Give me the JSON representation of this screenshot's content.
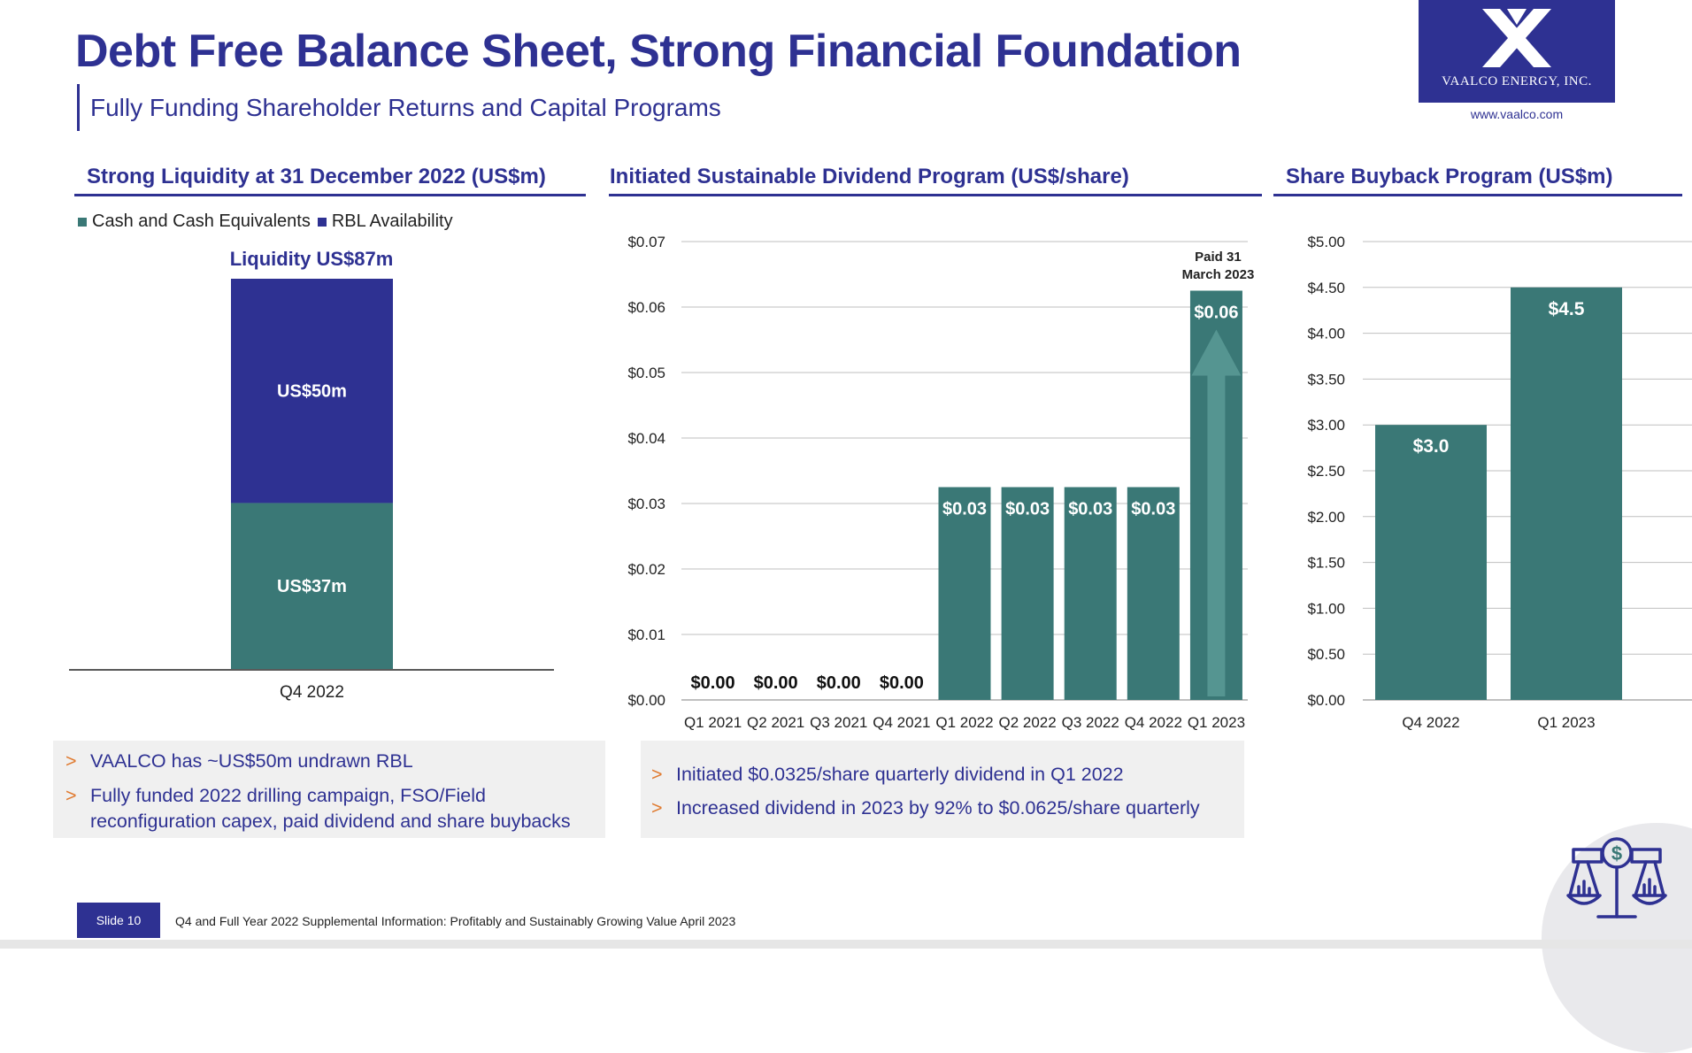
{
  "header": {
    "title": "Debt Free Balance Sheet, Strong Financial Foundation",
    "subtitle": "Fully Funding Shareholder Returns and Capital Programs"
  },
  "logo": {
    "brand": "VAALCO ENERGY, INC.",
    "url": "www.vaalco.com"
  },
  "colors": {
    "navy": "#2e3192",
    "teal": "#3a7876",
    "accent_orange": "#e07a2f",
    "grid": "#bfbfbf"
  },
  "panels": {
    "liquidity": {
      "heading": "Strong Liquidity at 31 December 2022 (US$m)",
      "legend": [
        "Cash and Cash Equivalents",
        "RBL Availability"
      ],
      "total_label": "Liquidity US$87m",
      "bullets": [
        "VAALCO has ~US$50m undrawn RBL",
        "Fully funded 2022 drilling campaign, FSO/Field",
        "reconfiguration capex, paid dividend and share buybacks"
      ]
    },
    "dividend": {
      "heading": "Initiated Sustainable Dividend Program (US$/share)",
      "annotation_line1": "Paid 31",
      "annotation_line2": "March 2023",
      "bullets": [
        "Initiated $0.0325/share quarterly dividend in Q1 2022",
        "Increased dividend in 2023 by 92% to $0.0625/share quarterly"
      ]
    },
    "buyback": {
      "heading": "Share Buyback Program (US$m)"
    }
  },
  "chart_data": [
    {
      "type": "bar",
      "stacked": true,
      "categories": [
        "Q4 2022"
      ],
      "series": [
        {
          "name": "Cash and Cash Equivalents",
          "values": [
            37
          ],
          "labels": [
            "US$37m"
          ],
          "color": "#3a7876"
        },
        {
          "name": "RBL Availability",
          "values": [
            50
          ],
          "labels": [
            "US$50m"
          ],
          "color": "#2e3192"
        }
      ],
      "ylim": [
        0,
        87
      ]
    },
    {
      "type": "bar",
      "categories": [
        "Q1 2021",
        "Q2 2021",
        "Q3 2021",
        "Q4 2021",
        "Q1 2022",
        "Q2 2022",
        "Q3 2022",
        "Q4 2022",
        "Q1 2023"
      ],
      "values": [
        0,
        0,
        0,
        0,
        0.0325,
        0.0325,
        0.0325,
        0.0325,
        0.0625
      ],
      "data_labels": [
        "$0.00",
        "$0.00",
        "$0.00",
        "$0.00",
        "$0.03",
        "$0.03",
        "$0.03",
        "$0.03",
        "$0.06"
      ],
      "yticks": [
        "$0.00",
        "$0.01",
        "$0.02",
        "$0.03",
        "$0.04",
        "$0.05",
        "$0.06",
        "$0.07"
      ],
      "ylim": [
        0,
        0.07
      ],
      "grid": true,
      "color": "#3a7876"
    },
    {
      "type": "bar",
      "categories": [
        "Q4 2022",
        "Q1 2023"
      ],
      "values": [
        3.0,
        4.5
      ],
      "data_labels": [
        "$3.0",
        "$4.5"
      ],
      "yticks": [
        "$0.00",
        "$0.50",
        "$1.00",
        "$1.50",
        "$2.00",
        "$2.50",
        "$3.00",
        "$3.50",
        "$4.00",
        "$4.50",
        "$5.00"
      ],
      "ylim": [
        0,
        5
      ],
      "grid": true,
      "color": "#3a7876"
    }
  ],
  "footer": {
    "slide_label": "Slide 10",
    "text": "Q4 and Full Year 2022 Supplemental Information: Profitably and Sustainably Growing Value April 2023"
  }
}
